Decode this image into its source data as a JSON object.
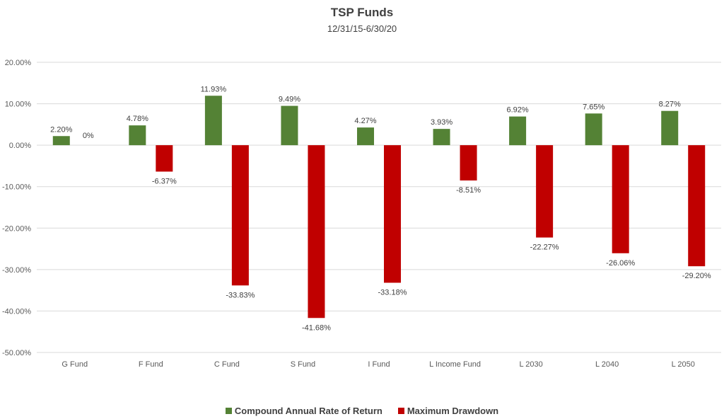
{
  "chart_data": {
    "type": "bar",
    "title": "TSP Funds",
    "subtitle": "12/31/15-6/30/20",
    "categories": [
      "G Fund",
      "F Fund",
      "C Fund",
      "S Fund",
      "I Fund",
      "L Income Fund",
      "L 2030",
      "L 2040",
      "L 2050"
    ],
    "series": [
      {
        "name": "Compound Annual Rate of Return",
        "color": "#548235",
        "values": [
          2.2,
          4.78,
          11.93,
          9.49,
          4.27,
          3.93,
          6.92,
          7.65,
          8.27
        ],
        "labels": [
          "2.20%",
          "4.78%",
          "11.93%",
          "9.49%",
          "4.27%",
          "3.93%",
          "6.92%",
          "7.65%",
          "8.27%"
        ]
      },
      {
        "name": "Maximum Drawdown",
        "color": "#C00000",
        "values": [
          0,
          -6.37,
          -33.83,
          -41.68,
          -33.18,
          -8.51,
          -22.27,
          -26.06,
          -29.2
        ],
        "labels": [
          "0%",
          "-6.37%",
          "-33.83%",
          "-41.68%",
          "-33.18%",
          "-8.51%",
          "-22.27%",
          "-26.06%",
          "-29.20%"
        ]
      }
    ],
    "ylim": [
      -50,
      20
    ],
    "yticks": [
      20,
      10,
      0,
      -10,
      -20,
      -30,
      -40,
      -50
    ],
    "ytick_labels": [
      "20.00%",
      "10.00%",
      "0.00%",
      "-10.00%",
      "-20.00%",
      "-30.00%",
      "-40.00%",
      "-50.00%"
    ],
    "grid": true,
    "legend_position": "bottom"
  }
}
